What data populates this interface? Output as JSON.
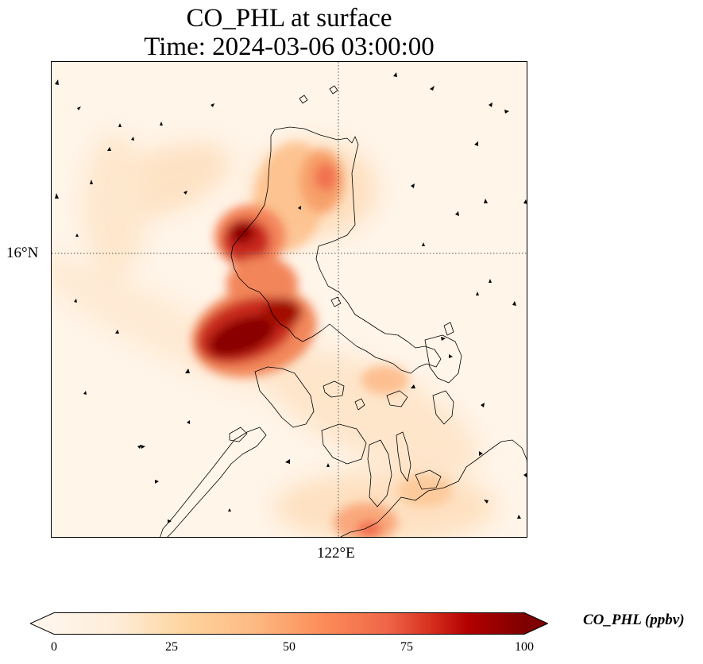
{
  "title": {
    "line1": "CO_PHL at surface",
    "line2": "Time: 2024-03-06 03:00:00"
  },
  "map": {
    "variable": "CO_PHL",
    "level": "surface",
    "gridlines": {
      "lat": "16°N",
      "lon": "122°E",
      "style": "dotted"
    },
    "background_color": "#fff5e9",
    "coastline_color": "#000000",
    "wind_vectors": "black arrows"
  },
  "colorbar": {
    "label": "CO_PHL (ppbv)",
    "min": 0,
    "max": 100,
    "ticks": [
      "0",
      "25",
      "50",
      "75",
      "100"
    ],
    "extend": "both",
    "colormap": [
      "#fff5eb",
      "#fdd49e",
      "#fdbb84",
      "#fc8d59",
      "#ef6548",
      "#d7301f",
      "#b30000",
      "#7f0000"
    ]
  }
}
